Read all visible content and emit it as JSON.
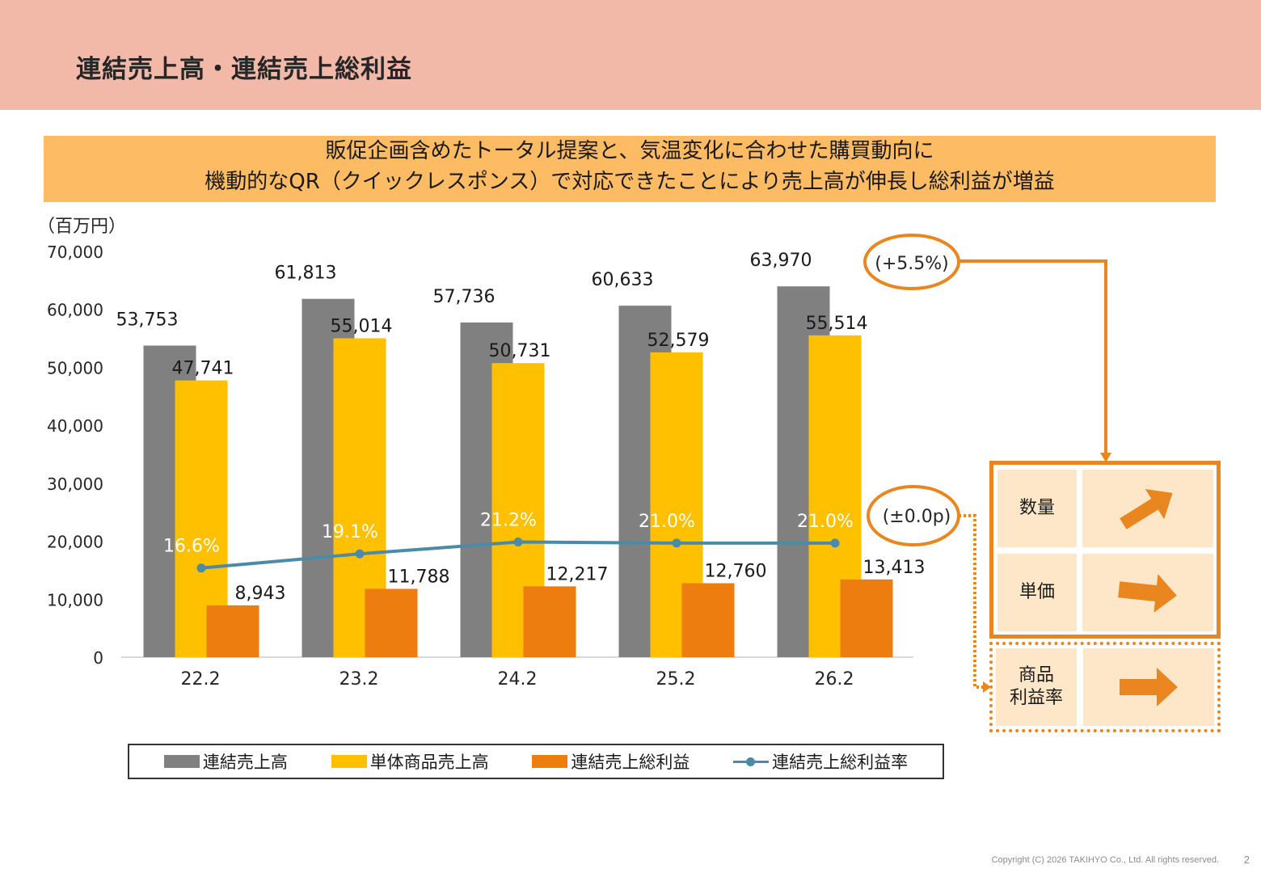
{
  "header": {
    "title": "連結売上高・連結売上総利益"
  },
  "banner": {
    "line1": "販促企画含めたトータル提案と、気温変化に合わせた購買動向に",
    "line2": "機動的なQR（クイックレスポンス）で対応できたことにより売上高が伸長し総利益が増益"
  },
  "chart_data": {
    "type": "bar",
    "unit_label": "（百万円）",
    "categories": [
      "22.2",
      "23.2",
      "24.2",
      "25.2",
      "26.2"
    ],
    "ylim": [
      0,
      70000
    ],
    "yticks": [
      "0",
      "10,000",
      "20,000",
      "30,000",
      "40,000",
      "50,000",
      "60,000",
      "70,000"
    ],
    "series": [
      {
        "name": "連結売上高",
        "type": "bar",
        "color": "#808080",
        "values": [
          53753,
          61813,
          57736,
          60633,
          63970
        ],
        "labels": [
          "53,753",
          "61,813",
          "57,736",
          "60,633",
          "63,970"
        ]
      },
      {
        "name": "単体商品売上高",
        "type": "bar",
        "color": "#ffc000",
        "values": [
          47741,
          55014,
          50731,
          52579,
          55514
        ],
        "labels": [
          "47,741",
          "55,014",
          "50,731",
          "52,579",
          "55,514"
        ]
      },
      {
        "name": "連結売上総利益",
        "type": "bar",
        "color": "#ed7d0f",
        "values": [
          8943,
          11788,
          12217,
          12760,
          13413
        ],
        "labels": [
          "8,943",
          "11,788",
          "12,217",
          "12,760",
          "13,413"
        ]
      },
      {
        "name": "連結売上総利益率",
        "type": "line",
        "color": "#4b8aa8",
        "values": [
          16.6,
          19.1,
          21.2,
          21.0,
          21.0
        ],
        "labels": [
          "16.6%",
          "19.1%",
          "21.2%",
          "21.0%",
          "21.0%"
        ]
      }
    ],
    "legend_position": "bottom",
    "grid": false
  },
  "callouts": {
    "sales_growth": "(+5.5%)",
    "margin_change": "(±0.0p)"
  },
  "factors": {
    "quantity": "数量",
    "unit_price": "単価",
    "margin_line1": "商品",
    "margin_line2": "利益率"
  },
  "footer": {
    "copyright": "Copyright (C) 2026 TAKIHYO Co., Ltd. All rights reserved.",
    "page": "2"
  },
  "colors": {
    "accent": "#e9861f",
    "header_bg": "#f2b9a9",
    "banner_bg": "#fdbb63"
  }
}
